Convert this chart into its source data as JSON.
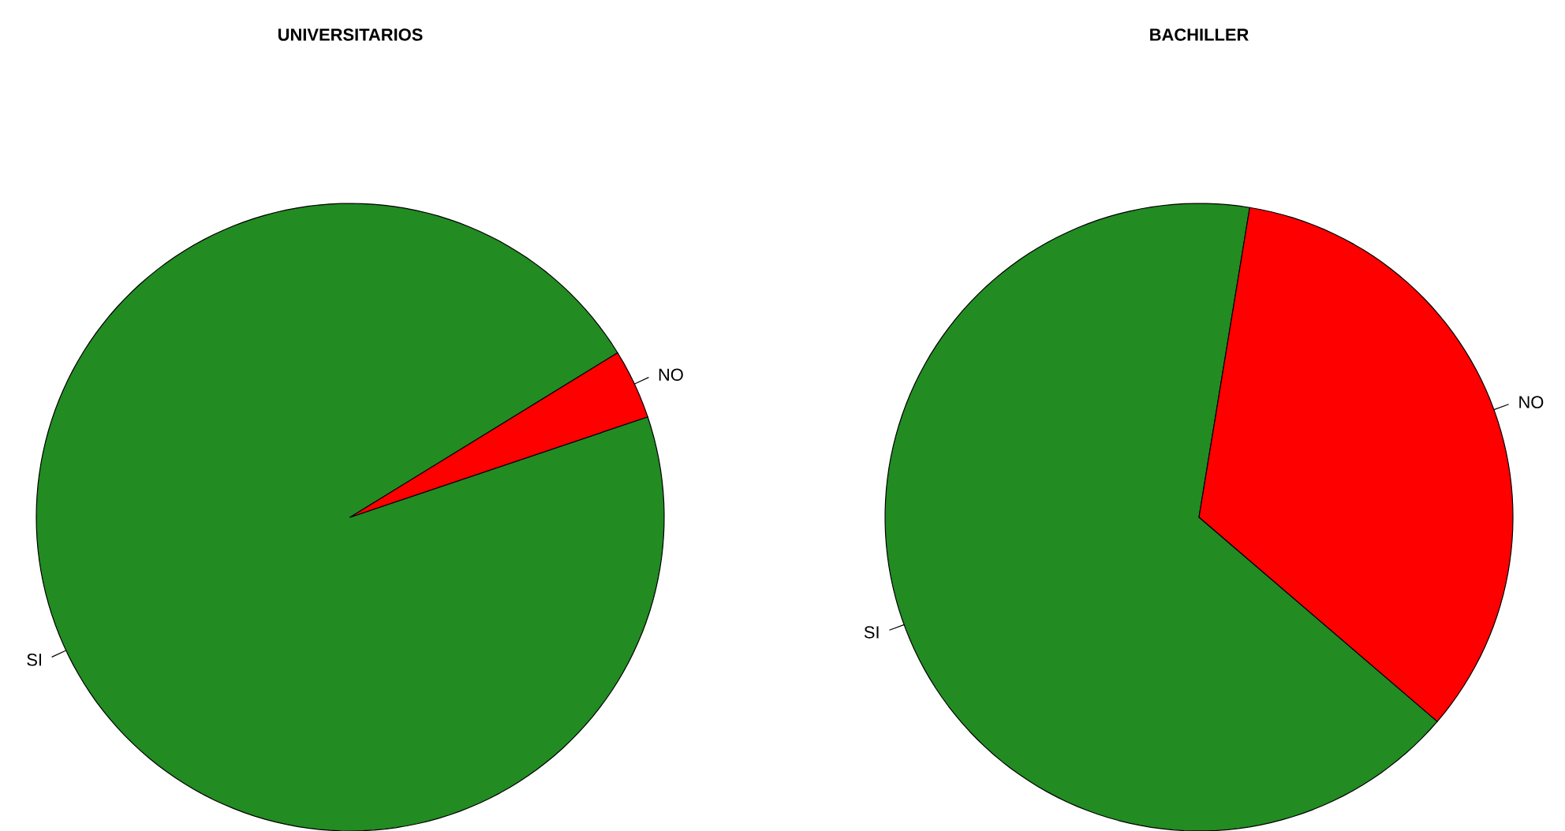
{
  "chart_data": [
    {
      "type": "pie",
      "title": "UNIVERSITARIOS",
      "categories": [
        "SI",
        "NO"
      ],
      "values": [
        96.4,
        3.6
      ],
      "colors": [
        "#228b22",
        "#ff0000"
      ]
    },
    {
      "type": "pie",
      "title": "BACHILLER",
      "categories": [
        "SI",
        "NO"
      ],
      "values": [
        66.3,
        33.7
      ],
      "colors": [
        "#228b22",
        "#ff0000"
      ]
    }
  ]
}
